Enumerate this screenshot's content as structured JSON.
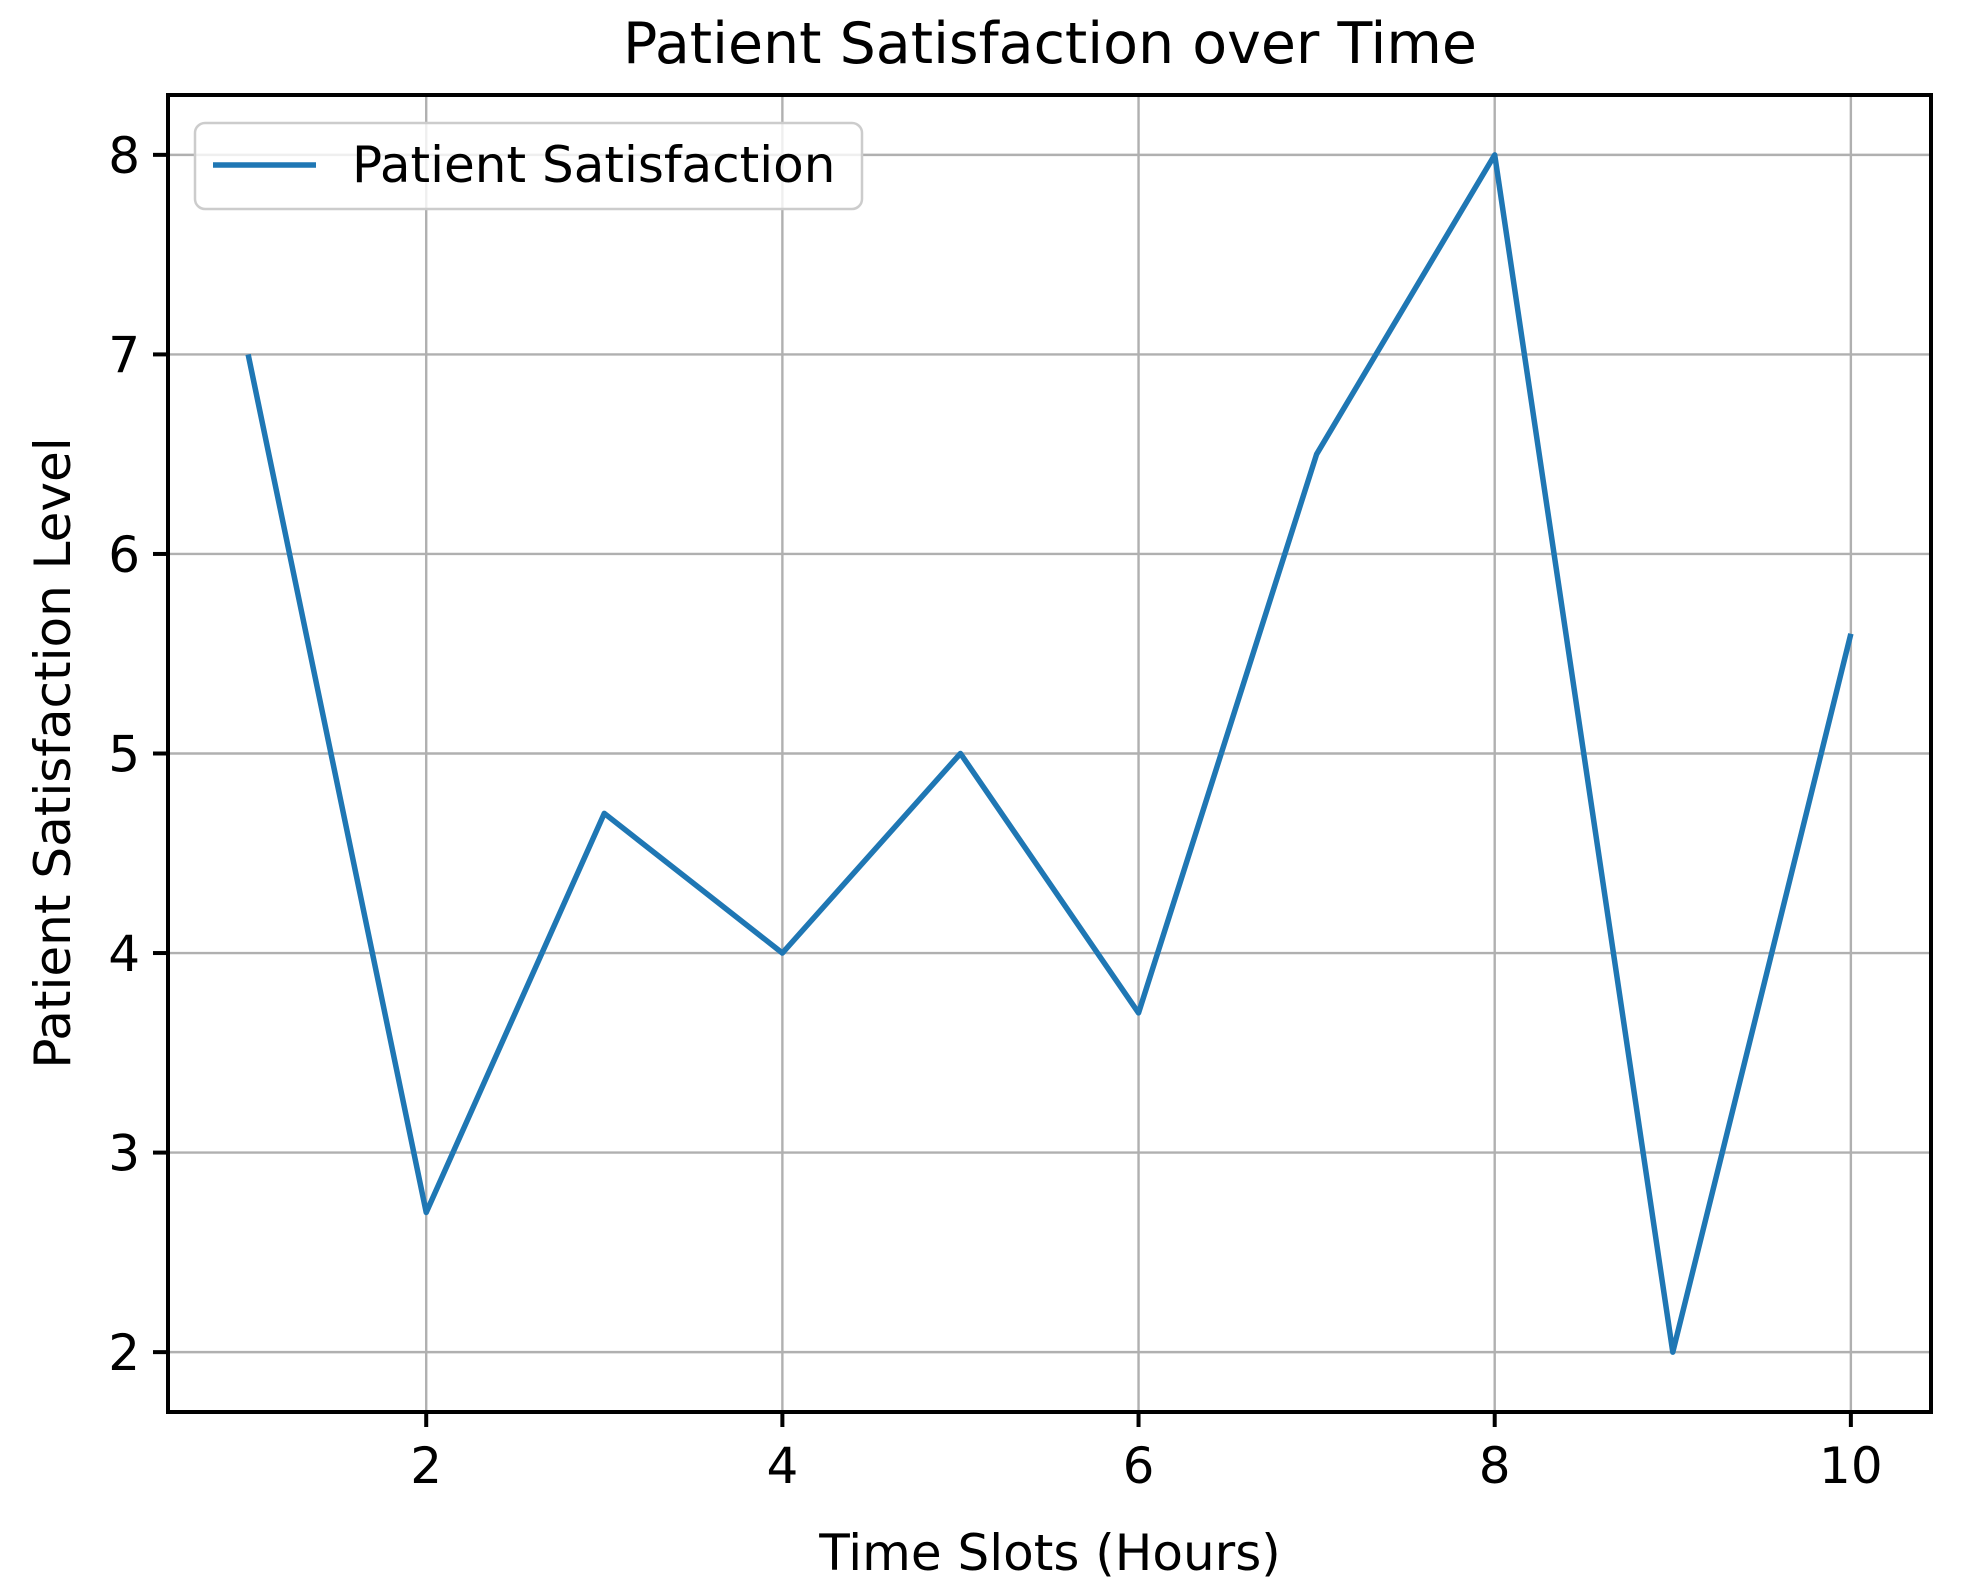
{
  "chart_data": {
    "type": "line",
    "title": "Patient Satisfaction over Time",
    "xlabel": "Time Slots (Hours)",
    "ylabel": "Patient Satisfaction Level",
    "x": [
      1,
      2,
      3,
      4,
      5,
      6,
      7,
      8,
      9,
      10
    ],
    "series": [
      {
        "name": "Patient Satisfaction",
        "color": "#1f77b4",
        "values": [
          7.0,
          2.7,
          4.7,
          4.0,
          5.0,
          3.7,
          6.5,
          8.0,
          2.0,
          5.6
        ]
      }
    ],
    "xlim": [
      0.55,
      10.45
    ],
    "ylim": [
      1.7,
      8.3
    ],
    "x_ticks": [
      2,
      4,
      6,
      8,
      10
    ],
    "y_ticks": [
      2,
      3,
      4,
      5,
      6,
      7,
      8
    ],
    "grid": true,
    "legend": {
      "position": "upper-left",
      "entries": [
        "Patient Satisfaction"
      ]
    },
    "colors": {
      "line": "#1f77b4",
      "grid": "#b0b0b0",
      "spine": "#000000",
      "text": "#000000",
      "legend_border": "#cccccc",
      "legend_background": "#ffffff",
      "figure_background": "#ffffff"
    }
  }
}
